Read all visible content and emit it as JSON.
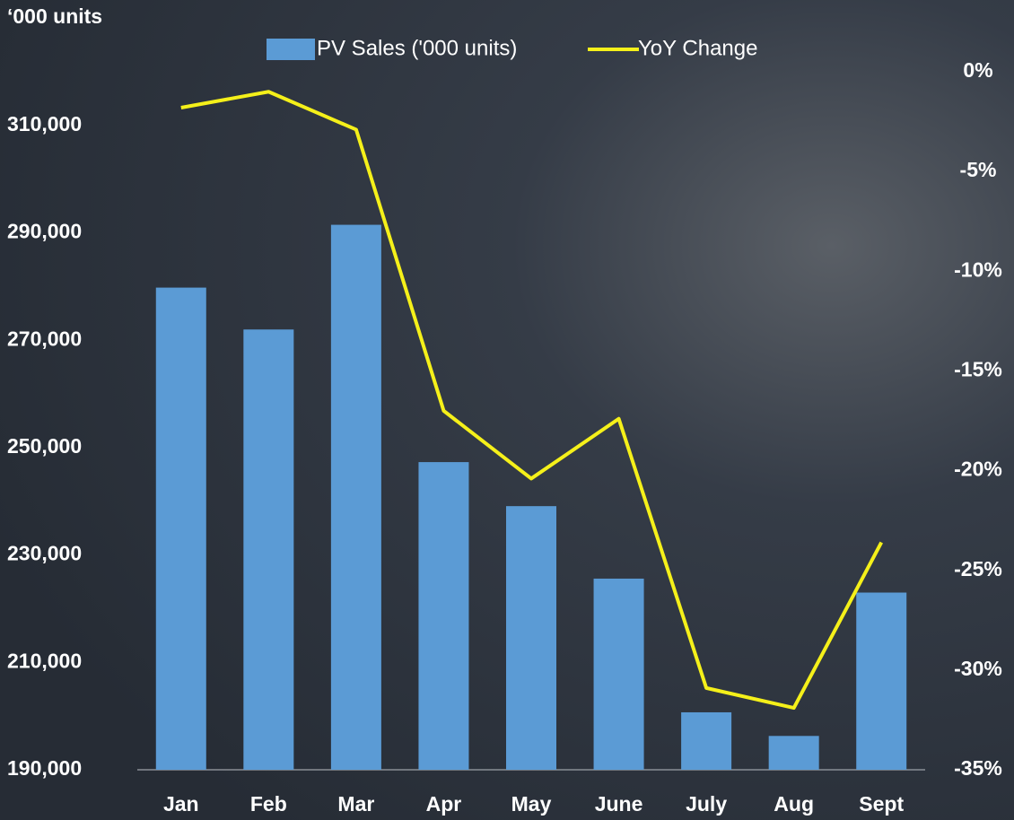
{
  "chart_data": {
    "type": "bar+line",
    "y_label": "‘000 units",
    "categories": [
      "Jan",
      "Feb",
      "Mar",
      "Apr",
      "May",
      "June",
      "July",
      "Aug",
      "Sept"
    ],
    "series": [
      {
        "name": "PV Sales ('000 units)",
        "type": "bar",
        "color": "#5b9bd5",
        "values": [
          279800,
          272000,
          291500,
          247300,
          239100,
          225600,
          200700,
          196300,
          223000
        ]
      },
      {
        "name": "YoY Change",
        "type": "line",
        "axis": "y2",
        "color": "#f5f01a",
        "values": [
          -1.8,
          -1.0,
          -2.9,
          -17.0,
          -20.4,
          -17.4,
          -30.9,
          -31.9,
          -23.6
        ]
      }
    ],
    "ylim": [
      190000,
      320000
    ],
    "yticks": [
      {
        "value": 190000,
        "label": "190,000"
      },
      {
        "value": 210000,
        "label": "210,000"
      },
      {
        "value": 230000,
        "label": "230,000"
      },
      {
        "value": 250000,
        "label": "250,000"
      },
      {
        "value": 270000,
        "label": "270,000"
      },
      {
        "value": 290000,
        "label": "290,000"
      },
      {
        "value": 310000,
        "label": "310,000"
      }
    ],
    "y2lim": [
      -35,
      0
    ],
    "y2ticks": [
      {
        "value": 0,
        "label": "0%"
      },
      {
        "value": -5,
        "label": "-5%"
      },
      {
        "value": -10,
        "label": "-10%"
      },
      {
        "value": -15,
        "label": "-15%"
      },
      {
        "value": -20,
        "label": "-20%"
      },
      {
        "value": -25,
        "label": "-25%"
      },
      {
        "value": -30,
        "label": "-30%"
      },
      {
        "value": -35,
        "label": "-35%"
      }
    ],
    "legend": "top"
  }
}
